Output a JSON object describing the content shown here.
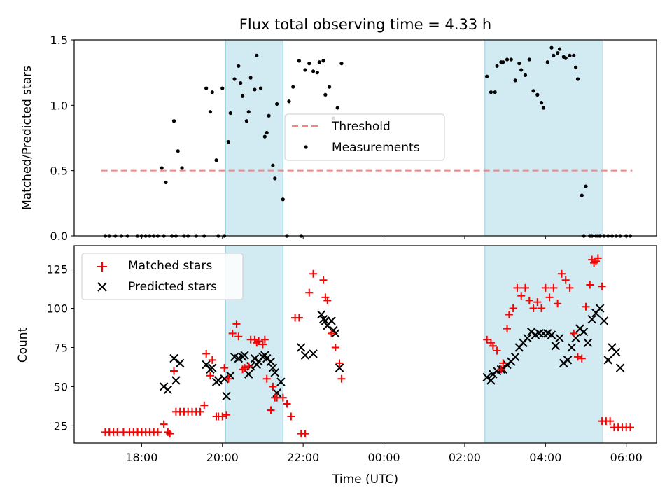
{
  "chart_data": [
    {
      "type": "scatter",
      "title": "Flux total observing time = 4.33 h",
      "xlabel": "",
      "ylabel": "Matched/Predicted stars",
      "xlim": [
        16.33,
        30.75
      ],
      "ylim": [
        0,
        1.5
      ],
      "yticks": [
        0,
        0.5,
        1.0,
        1.5
      ],
      "ytick_labels": [
        "0.0",
        "0.5",
        "1.0",
        "1.5"
      ],
      "shaded_regions": [
        [
          20.08,
          21.5
        ],
        [
          26.5,
          29.42
        ]
      ],
      "threshold": {
        "value": 0.5,
        "x_range": [
          17.0,
          30.15
        ],
        "color": "#ff7f7f"
      },
      "legend": {
        "position": "center",
        "entries": [
          "Threshold",
          "Measurements"
        ]
      },
      "x": [
        17.1,
        17.2,
        17.35,
        17.5,
        17.65,
        17.9,
        18.0,
        18.1,
        18.2,
        18.3,
        18.4,
        18.55,
        18.75,
        18.85,
        19.05,
        19.15,
        19.35,
        19.55,
        19.9,
        20.05,
        18.5,
        18.6,
        18.8,
        18.9,
        19.0,
        19.6,
        19.7,
        19.75,
        19.85,
        20.0,
        20.15,
        20.2,
        20.3,
        20.4,
        20.45,
        20.5,
        20.6,
        20.65,
        20.7,
        20.8,
        20.85,
        20.95,
        21.05,
        21.1,
        21.15,
        21.25,
        21.3,
        21.35,
        21.5,
        21.6,
        21.65,
        21.75,
        21.95,
        21.9,
        22.15,
        22.25,
        22.05,
        22.35,
        22.4,
        22.5,
        22.55,
        22.65,
        22.75,
        22.85,
        22.95,
        26.55,
        26.65,
        26.75,
        26.8,
        26.9,
        26.95,
        27.05,
        27.15,
        27.25,
        27.35,
        27.4,
        27.5,
        27.6,
        27.7,
        27.8,
        27.9,
        27.95,
        28.05,
        28.15,
        28.2,
        28.3,
        28.35,
        28.45,
        28.5,
        28.6,
        28.7,
        28.75,
        28.8,
        28.9,
        28.95,
        29.0,
        29.1,
        29.15,
        29.25,
        29.3,
        29.35,
        29.45,
        29.55,
        29.65,
        29.75,
        29.85,
        30.0,
        30.1
      ],
      "y": [
        0,
        0,
        0,
        0,
        0,
        0,
        0,
        0,
        0,
        0,
        0,
        0,
        0,
        0,
        0,
        0,
        0,
        0,
        0,
        0,
        0.52,
        0.41,
        0.88,
        0.65,
        0.52,
        1.13,
        0.95,
        1.1,
        0.58,
        1.13,
        0.72,
        0.94,
        1.2,
        1.3,
        1.17,
        1.07,
        0.88,
        0.95,
        1.21,
        1.12,
        1.38,
        1.13,
        0.76,
        0.79,
        0.92,
        0.54,
        0.44,
        1.01,
        0.28,
        0,
        1.03,
        1.14,
        0,
        1.34,
        1.32,
        1.26,
        1.27,
        1.25,
        1.33,
        1.34,
        1.08,
        1.14,
        0.9,
        0.98,
        1.32,
        1.22,
        1.1,
        1.1,
        1.3,
        1.33,
        1.33,
        1.35,
        1.35,
        1.19,
        1.32,
        1.27,
        1.23,
        1.35,
        1.11,
        1.08,
        1.02,
        0.98,
        1.33,
        1.44,
        1.38,
        1.4,
        1.43,
        1.37,
        1.36,
        1.38,
        1.38,
        1.29,
        1.2,
        0.31,
        0,
        0.38,
        0,
        0,
        0,
        0,
        0,
        0,
        0,
        0,
        0,
        0,
        0,
        0
      ]
    },
    {
      "type": "scatter",
      "title": "",
      "xlabel": "Time (UTC)",
      "ylabel": "Count",
      "xlim": [
        16.33,
        30.75
      ],
      "ylim": [
        14,
        140
      ],
      "yticks": [
        25,
        50,
        75,
        100,
        125
      ],
      "ytick_labels": [
        "25",
        "50",
        "75",
        "100",
        "125"
      ],
      "xticks": [
        18,
        20,
        22,
        24,
        26,
        28,
        30
      ],
      "xtick_labels": [
        "18:00",
        "20:00",
        "22:00",
        "00:00",
        "02:00",
        "04:00",
        "06:00"
      ],
      "shaded_regions": [
        [
          20.08,
          21.5
        ],
        [
          26.5,
          29.42
        ]
      ],
      "legend": {
        "position": "top-left",
        "entries": [
          "Matched stars",
          "Predicted stars"
        ]
      },
      "series": [
        {
          "name": "Matched stars",
          "marker": "plus",
          "color": "#ff0000",
          "x": [
            17.1,
            17.2,
            17.3,
            17.4,
            17.55,
            17.7,
            17.8,
            17.9,
            18.0,
            18.1,
            18.2,
            18.3,
            18.4,
            18.55,
            18.65,
            18.7,
            18.8,
            18.85,
            18.95,
            19.05,
            19.15,
            19.25,
            19.35,
            19.45,
            19.55,
            19.6,
            19.7,
            19.75,
            19.85,
            19.9,
            20.0,
            20.05,
            20.1,
            20.15,
            20.25,
            20.35,
            20.4,
            20.5,
            20.55,
            20.65,
            20.7,
            20.8,
            20.85,
            20.9,
            21.0,
            21.05,
            21.1,
            21.2,
            21.25,
            21.3,
            21.35,
            21.5,
            21.6,
            21.7,
            21.8,
            21.9,
            21.95,
            22.05,
            22.15,
            22.25,
            22.5,
            22.55,
            22.6,
            22.7,
            22.8,
            22.9,
            22.95,
            26.55,
            26.65,
            26.7,
            26.8,
            26.9,
            26.95,
            27.05,
            27.1,
            27.2,
            27.3,
            27.4,
            27.5,
            27.6,
            27.7,
            27.8,
            27.9,
            28.0,
            28.1,
            28.2,
            28.3,
            28.4,
            28.5,
            28.6,
            28.7,
            28.8,
            28.9,
            29.0,
            29.1,
            29.2,
            29.3,
            29.4,
            29.5,
            29.6,
            29.7,
            29.8,
            29.9,
            30.0,
            30.1,
            29.15,
            29.25,
            29.4
          ],
          "y": [
            21,
            21,
            21,
            21,
            21,
            21,
            21,
            21,
            21,
            21,
            21,
            21,
            21,
            26,
            21,
            20,
            60,
            34,
            34,
            34,
            34,
            34,
            34,
            34,
            38,
            71,
            57,
            67,
            31,
            31,
            31,
            62,
            32,
            55,
            84,
            90,
            82,
            61,
            62,
            63,
            80,
            80,
            78,
            79,
            77,
            80,
            55,
            35,
            50,
            43,
            43,
            43,
            39,
            31,
            94,
            94,
            20,
            20,
            110,
            122,
            118,
            107,
            105,
            84,
            75,
            65,
            55,
            80,
            78,
            76,
            73,
            61,
            65,
            87,
            96,
            100,
            113,
            108,
            113,
            105,
            100,
            104,
            100,
            113,
            107,
            113,
            103,
            122,
            118,
            113,
            84,
            69,
            68,
            101,
            115,
            129,
            132,
            28,
            28,
            28,
            24,
            24,
            24,
            24,
            24,
            131,
            130,
            114
          ]
        },
        {
          "name": "Predicted stars",
          "marker": "x",
          "color": "#000000",
          "x": [
            18.55,
            18.65,
            18.8,
            18.85,
            18.95,
            19.6,
            19.7,
            19.75,
            19.85,
            19.9,
            20.05,
            20.1,
            20.2,
            20.3,
            20.4,
            20.5,
            20.55,
            20.65,
            20.7,
            20.8,
            20.85,
            20.9,
            21.0,
            21.05,
            21.1,
            21.2,
            21.25,
            21.3,
            21.35,
            21.45,
            21.95,
            22.05,
            22.25,
            22.45,
            22.5,
            22.55,
            22.6,
            22.7,
            22.75,
            22.8,
            22.9,
            26.55,
            26.65,
            26.7,
            26.8,
            26.9,
            26.95,
            27.05,
            27.15,
            27.25,
            27.35,
            27.45,
            27.55,
            27.65,
            27.75,
            27.85,
            27.95,
            28.05,
            28.15,
            28.25,
            28.35,
            28.45,
            28.55,
            28.65,
            28.75,
            28.85,
            28.95,
            29.05,
            29.15,
            29.25,
            29.35,
            29.45,
            29.55,
            29.65,
            29.75,
            29.85
          ],
          "y": [
            50,
            48,
            68,
            54,
            65,
            64,
            61,
            62,
            53,
            54,
            55,
            44,
            57,
            69,
            68,
            69,
            70,
            58,
            63,
            68,
            64,
            66,
            69,
            70,
            68,
            66,
            62,
            59,
            46,
            53,
            75,
            70,
            71,
            96,
            93,
            92,
            89,
            92,
            86,
            84,
            62,
            56,
            54,
            58,
            60,
            61,
            61,
            64,
            66,
            69,
            75,
            78,
            81,
            85,
            83,
            84,
            84,
            84,
            83,
            76,
            81,
            65,
            67,
            75,
            81,
            87,
            85,
            78,
            93,
            97,
            100,
            92,
            67,
            75,
            72,
            62
          ]
        }
      ]
    }
  ]
}
